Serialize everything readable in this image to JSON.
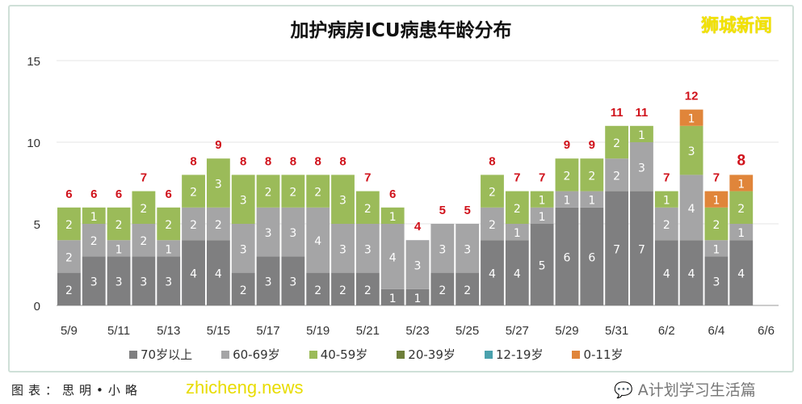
{
  "chart_data": {
    "type": "bar",
    "stacked": true,
    "title": "加护病房ICU病患年龄分布",
    "xlabel": "",
    "ylabel": "",
    "ylim": [
      0,
      15
    ],
    "yticks": [
      0,
      5,
      10,
      15
    ],
    "grid": true,
    "legend_position": "bottom",
    "categories": [
      "5/9",
      "5/10",
      "5/11",
      "5/12",
      "5/13",
      "5/14",
      "5/15",
      "5/16",
      "5/17",
      "5/18",
      "5/19",
      "5/20",
      "5/21",
      "5/22",
      "5/23",
      "5/24",
      "5/25",
      "5/26",
      "5/27",
      "5/28",
      "5/29",
      "5/30",
      "5/31",
      "6/1",
      "6/2",
      "6/3",
      "6/4",
      "6/5",
      "6/6"
    ],
    "xtick_labels": [
      "5/9",
      "5/11",
      "5/13",
      "5/15",
      "5/17",
      "5/19",
      "5/21",
      "5/23",
      "5/25",
      "5/27",
      "5/29",
      "5/31",
      "6/2",
      "6/4",
      "6/6"
    ],
    "series": [
      {
        "name": "70岁以上",
        "color": "#7f7f80",
        "values": [
          2,
          3,
          3,
          3,
          3,
          4,
          4,
          2,
          3,
          3,
          2,
          2,
          2,
          1,
          1,
          2,
          2,
          4,
          4,
          5,
          6,
          6,
          7,
          7,
          4,
          4,
          3,
          4,
          null
        ]
      },
      {
        "name": "60-69岁",
        "color": "#a5a5a6",
        "values": [
          2,
          2,
          1,
          2,
          1,
          2,
          2,
          3,
          3,
          3,
          4,
          3,
          3,
          4,
          3,
          3,
          3,
          2,
          1,
          1,
          1,
          1,
          2,
          3,
          2,
          4,
          1,
          1,
          null
        ]
      },
      {
        "name": "40-59岁",
        "color": "#9bbb59",
        "values": [
          2,
          1,
          2,
          2,
          2,
          2,
          3,
          3,
          2,
          2,
          2,
          3,
          2,
          1,
          0,
          0,
          0,
          2,
          2,
          1,
          2,
          2,
          2,
          1,
          1,
          3,
          2,
          2,
          null
        ]
      },
      {
        "name": "20-39岁",
        "color": "#6e7f3a",
        "values": [
          0,
          0,
          0,
          0,
          0,
          0,
          0,
          0,
          0,
          0,
          0,
          0,
          0,
          0,
          0,
          0,
          0,
          0,
          0,
          0,
          0,
          0,
          0,
          0,
          0,
          0,
          0,
          0,
          null
        ]
      },
      {
        "name": "12-19岁",
        "color": "#4aa1ad",
        "values": [
          0,
          0,
          0,
          0,
          0,
          0,
          0,
          0,
          0,
          0,
          0,
          0,
          0,
          0,
          0,
          0,
          0,
          0,
          0,
          0,
          0,
          0,
          0,
          0,
          0,
          0,
          0,
          0,
          null
        ]
      },
      {
        "name": "0-11岁",
        "color": "#e0853a",
        "values": [
          0,
          0,
          0,
          0,
          0,
          0,
          0,
          0,
          0,
          0,
          0,
          0,
          0,
          0,
          0,
          0,
          0,
          0,
          0,
          0,
          0,
          0,
          0,
          0,
          0,
          1,
          1,
          1,
          null
        ]
      }
    ],
    "totals": [
      6,
      6,
      6,
      7,
      6,
      8,
      9,
      8,
      8,
      8,
      8,
      8,
      7,
      6,
      4,
      5,
      5,
      8,
      7,
      7,
      9,
      9,
      11,
      11,
      7,
      12,
      7,
      8,
      null
    ],
    "total_label_color": "#d0121b"
  },
  "logo": "狮城新闻",
  "watermark": "zhicheng.news",
  "caption": "图表：思明•小略",
  "wechat_account": "A计划学习生活篇"
}
